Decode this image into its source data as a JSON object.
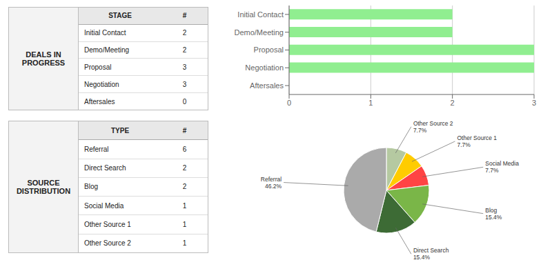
{
  "chart_data": [
    {
      "type": "table",
      "title": "DEALS IN\nPROGRESS",
      "header": [
        "STAGE",
        "#"
      ],
      "categories": [
        "Initial Contact",
        "Demo/Meeting",
        "Proposal",
        "Negotiation",
        "Aftersales"
      ],
      "values": [
        2,
        2,
        3,
        3,
        0
      ]
    },
    {
      "type": "table",
      "title": "SOURCE\nDISTRIBUTION",
      "header": [
        "TYPE",
        "#"
      ],
      "categories": [
        "Referral",
        "Direct Search",
        "Blog",
        "Social Media",
        "Other Source 1",
        "Other Source 2"
      ],
      "values": [
        6,
        2,
        2,
        1,
        1,
        1
      ]
    },
    {
      "type": "bar",
      "orientation": "horizontal",
      "categories": [
        "Initial Contact",
        "Demo/Meeting",
        "Proposal",
        "Negotiation",
        "Aftersales"
      ],
      "values": [
        2,
        2,
        3,
        3,
        0
      ],
      "color": "#90EE90",
      "xlim": [
        0,
        3
      ],
      "xticks": [
        0,
        1,
        2,
        3
      ],
      "grid": true
    },
    {
      "type": "pie",
      "categories": [
        "Other Source 2",
        "Other Source 1",
        "Social Media",
        "Blog",
        "Direct Search",
        "Referral"
      ],
      "values": [
        7.7,
        7.7,
        7.7,
        15.4,
        15.4,
        46.2
      ],
      "value_labels": [
        "7.7%",
        "7.7%",
        "7.7%",
        "15.4%",
        "15.4%",
        "46.2%"
      ],
      "colors": [
        "#b5c9a1",
        "#ffcc00",
        "#ff4444",
        "#7ab648",
        "#3d6b35",
        "#aaaaaa"
      ]
    }
  ]
}
